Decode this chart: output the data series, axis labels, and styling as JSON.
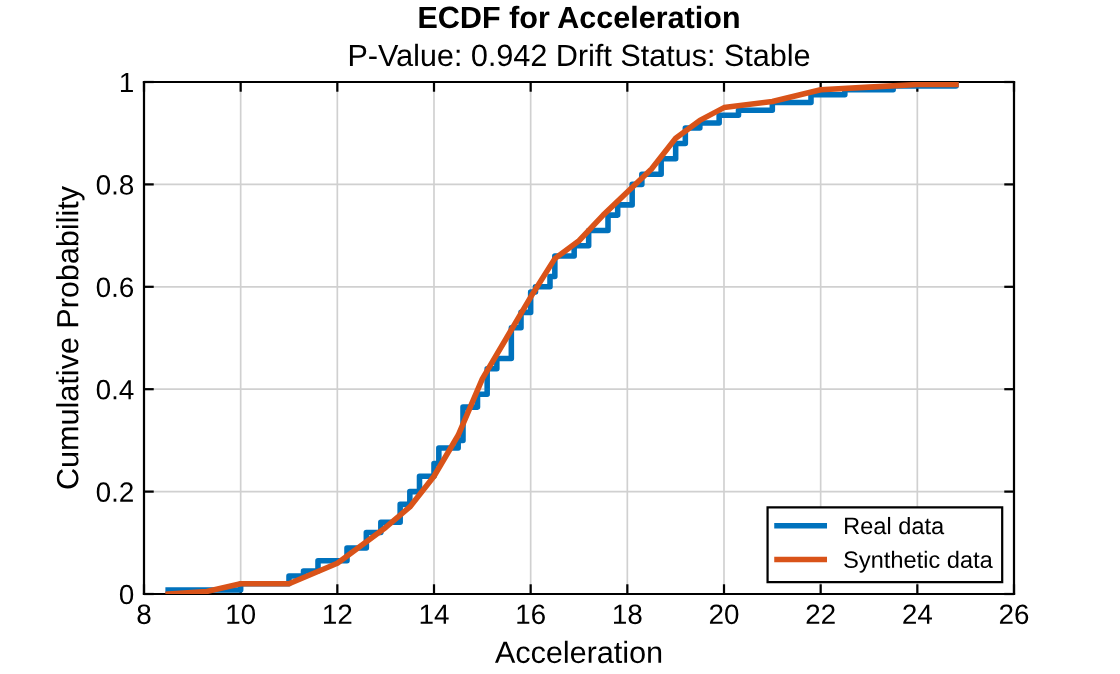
{
  "chart_data": {
    "type": "line",
    "title": "ECDF for Acceleration",
    "subtitle": "P-Value: 0.942 Drift Status: Stable",
    "xlabel": "Acceleration",
    "ylabel": "Cumulative Probability",
    "xlim": [
      8,
      26
    ],
    "xticks": [
      8,
      10,
      12,
      14,
      16,
      18,
      20,
      22,
      24,
      26
    ],
    "ylim": [
      0,
      1
    ],
    "yticks": [
      0,
      0.2,
      0.4,
      0.6,
      0.8,
      1
    ],
    "grid": true,
    "legend": "bottom right",
    "series": [
      {
        "name": "Real data",
        "type": "step",
        "color": "#0072bd",
        "x": [
          8.5,
          10.0,
          11.0,
          11.3,
          11.6,
          12.2,
          12.6,
          12.9,
          13.3,
          13.5,
          13.7,
          14.0,
          14.1,
          14.5,
          14.6,
          14.9,
          15.1,
          15.3,
          15.6,
          15.8,
          16.0,
          16.1,
          16.4,
          16.5,
          16.9,
          17.2,
          17.6,
          17.8,
          18.1,
          18.3,
          18.7,
          19.0,
          19.2,
          19.5,
          19.9,
          20.3,
          21.0,
          21.8,
          22.5,
          23.5,
          24.8
        ],
        "values": [
          0.008,
          0.02,
          0.035,
          0.045,
          0.065,
          0.09,
          0.12,
          0.14,
          0.175,
          0.2,
          0.23,
          0.255,
          0.285,
          0.3,
          0.365,
          0.39,
          0.44,
          0.46,
          0.52,
          0.55,
          0.59,
          0.6,
          0.62,
          0.66,
          0.68,
          0.71,
          0.74,
          0.76,
          0.8,
          0.82,
          0.85,
          0.88,
          0.91,
          0.92,
          0.935,
          0.945,
          0.96,
          0.975,
          0.985,
          0.992,
          1.0
        ]
      },
      {
        "name": "Synthetic data",
        "color": "#d95319",
        "x": [
          8.5,
          9.3,
          10,
          11,
          12,
          13,
          13.5,
          14,
          14.5,
          15,
          15.5,
          16,
          16.5,
          17,
          17.5,
          18,
          18.5,
          19,
          19.5,
          20,
          21,
          22,
          23,
          24,
          24.8
        ],
        "values": [
          0,
          0.005,
          0.02,
          0.02,
          0.06,
          0.13,
          0.17,
          0.23,
          0.31,
          0.42,
          0.5,
          0.58,
          0.655,
          0.69,
          0.74,
          0.785,
          0.83,
          0.89,
          0.925,
          0.95,
          0.962,
          0.985,
          0.99,
          0.995,
          0.995
        ]
      }
    ]
  }
}
